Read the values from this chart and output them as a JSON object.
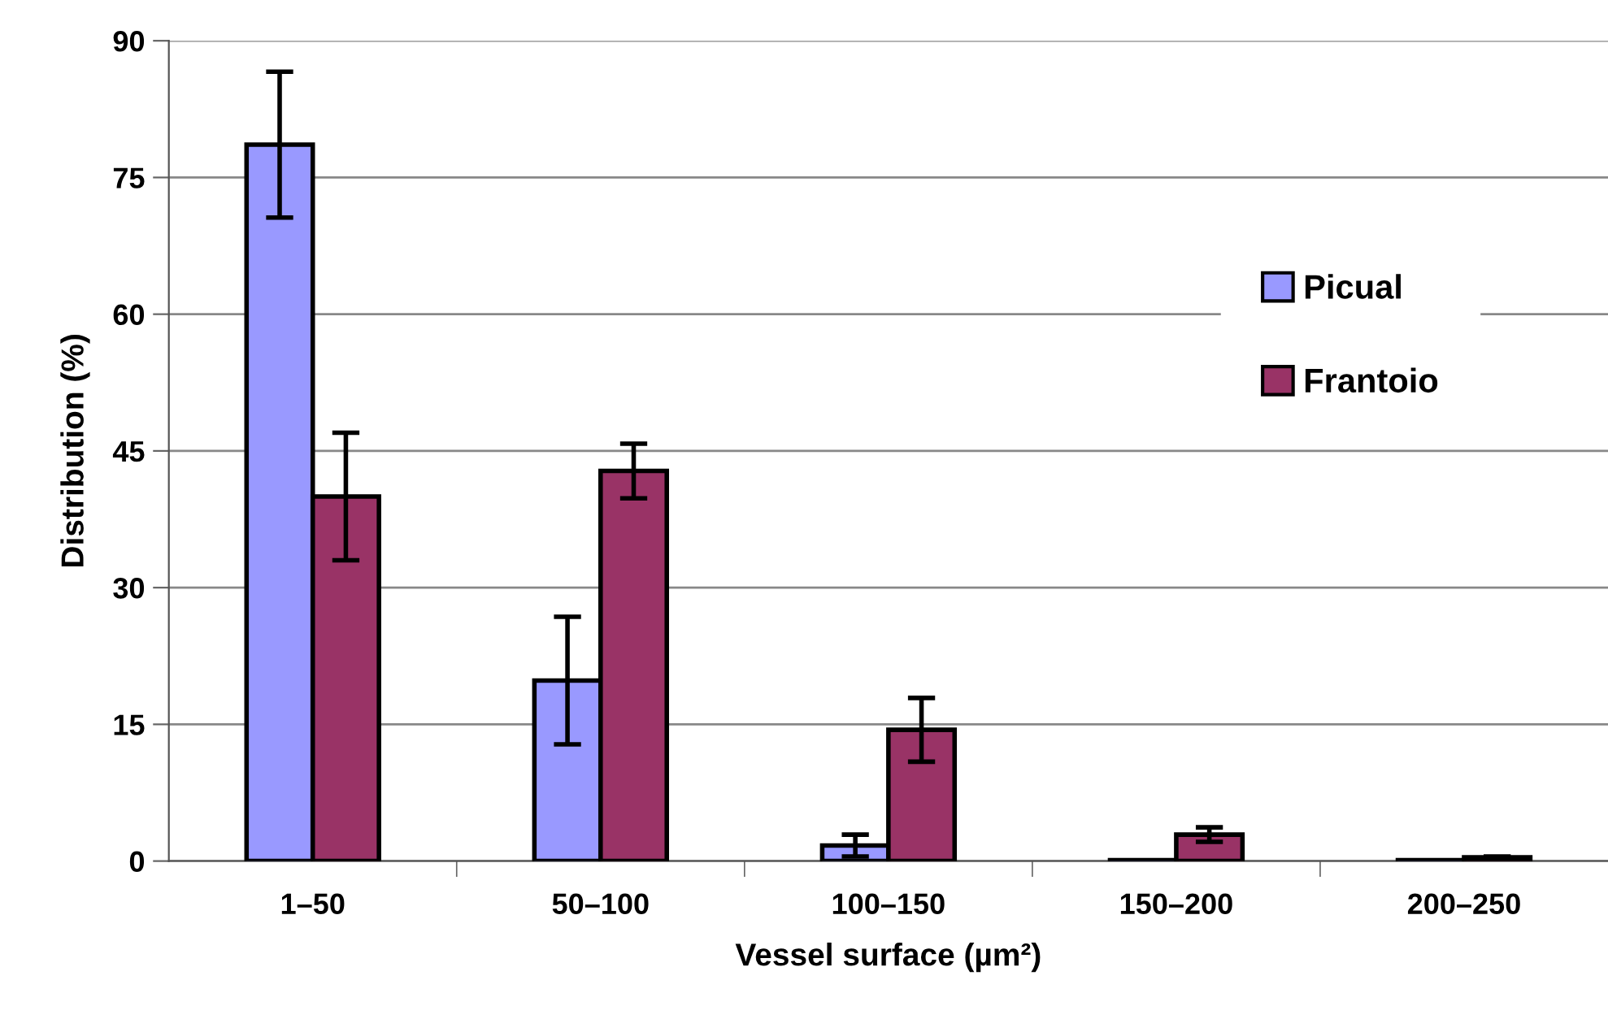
{
  "chart_data": {
    "type": "bar",
    "xlabel": "Vessel surface (µm²)",
    "ylabel": "Distribution (%)",
    "categories": [
      "1–50",
      "50–100",
      "100–150",
      "150–200",
      "200–250"
    ],
    "series": [
      {
        "name": "Picual",
        "color": "#9999ff",
        "values": [
          78.6,
          19.8,
          1.7,
          0.1,
          0.1
        ],
        "errors": [
          8,
          7,
          1.2,
          null,
          null
        ]
      },
      {
        "name": "Frantoio",
        "color": "#993366",
        "values": [
          40.0,
          42.8,
          14.4,
          2.9,
          0.4
        ],
        "errors": [
          7,
          3,
          3.5,
          0.8,
          0.1
        ]
      }
    ],
    "ylim": [
      0,
      90
    ],
    "yticks": [
      0,
      15,
      30,
      45,
      60,
      75,
      90
    ],
    "grid": "y",
    "legend": "right"
  }
}
